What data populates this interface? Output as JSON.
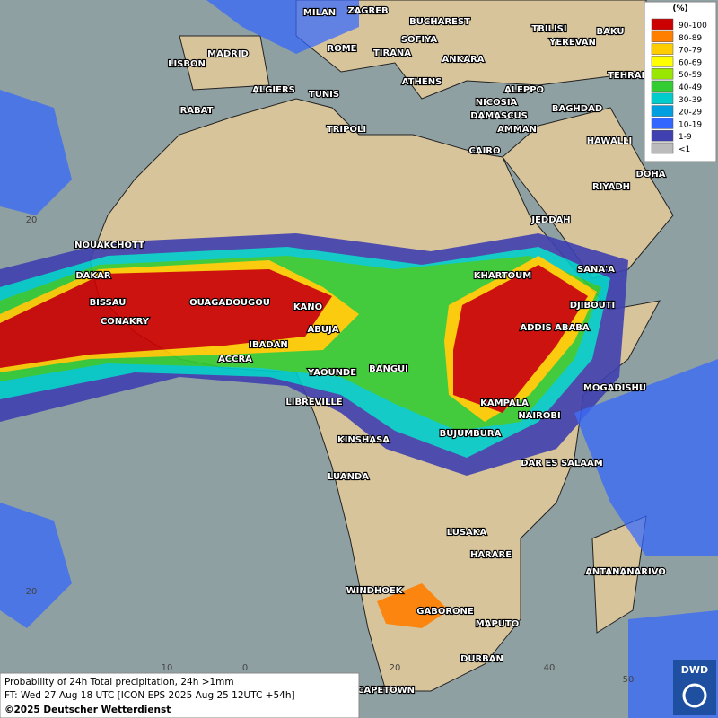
{
  "legend": {
    "unit": "(%)",
    "items": [
      {
        "label": "90-100",
        "color": "#cc0000"
      },
      {
        "label": "80-89",
        "color": "#ff7f00"
      },
      {
        "label": "70-79",
        "color": "#ffcc00"
      },
      {
        "label": "60-69",
        "color": "#ffff00"
      },
      {
        "label": "50-59",
        "color": "#99e600"
      },
      {
        "label": "40-49",
        "color": "#33cc33"
      },
      {
        "label": "30-39",
        "color": "#00cccc"
      },
      {
        "label": "20-29",
        "color": "#00a0e0"
      },
      {
        "label": "10-19",
        "color": "#3366ff"
      },
      {
        "label": "1-9",
        "color": "#4040b0"
      },
      {
        "label": "<1",
        "color": "#bbbbbb"
      }
    ]
  },
  "cities": [
    "MILAN",
    "ZAGREB",
    "BUCHAREST",
    "TBILISI",
    "BAKU",
    "SOFIYA",
    "YEREVAN",
    "LISBON",
    "MADRID",
    "ROME",
    "TIRANA",
    "ANKARA",
    "TEHRAN",
    "ATHENS",
    "ALGIERS",
    "TUNIS",
    "ALEPPO",
    "RABAT",
    "NICOSIA",
    "BAGHDAD",
    "DAMASCUS",
    "AMMAN",
    "TRIPOLI",
    "HAWALLI",
    "CAIRO",
    "DOHA",
    "RIYADH",
    "JEDDAH",
    "NOUAKCHOTT",
    "SANA'A",
    "DAKAR",
    "KHARTOUM",
    "BISSAU",
    "OUAGADOUGOU",
    "DJIBOUTI",
    "KANO",
    "CONAKRY",
    "ABUJA",
    "ADDIS ABABA",
    "IBADAN",
    "ACCRA",
    "BANGUI",
    "YAOUNDE",
    "MOGADISHU",
    "LIBREVILLE",
    "KAMPALA",
    "NAIROBI",
    "BUJUMBURA",
    "KINSHASA",
    "DAR ES SALAAM",
    "LUANDA",
    "LUSAKA",
    "HARARE",
    "ANTANANARIVO",
    "WINDHOEK",
    "GABORONE",
    "MAPUTO",
    "DURBAN",
    "CAPETOWN"
  ],
  "graticule_labels": [
    "20",
    "20",
    "10",
    "0",
    "20",
    "40",
    "50"
  ],
  "footer": {
    "title": "Probability of 24h Total precipitation, 24h >1mm",
    "forecast": "FT: Wed 27 Aug 18 UTC [ICON EPS 2025 Aug 25 12UTC +54h]",
    "copyright": "©2025 Deutscher Wetterdienst"
  },
  "logo": "DWD"
}
